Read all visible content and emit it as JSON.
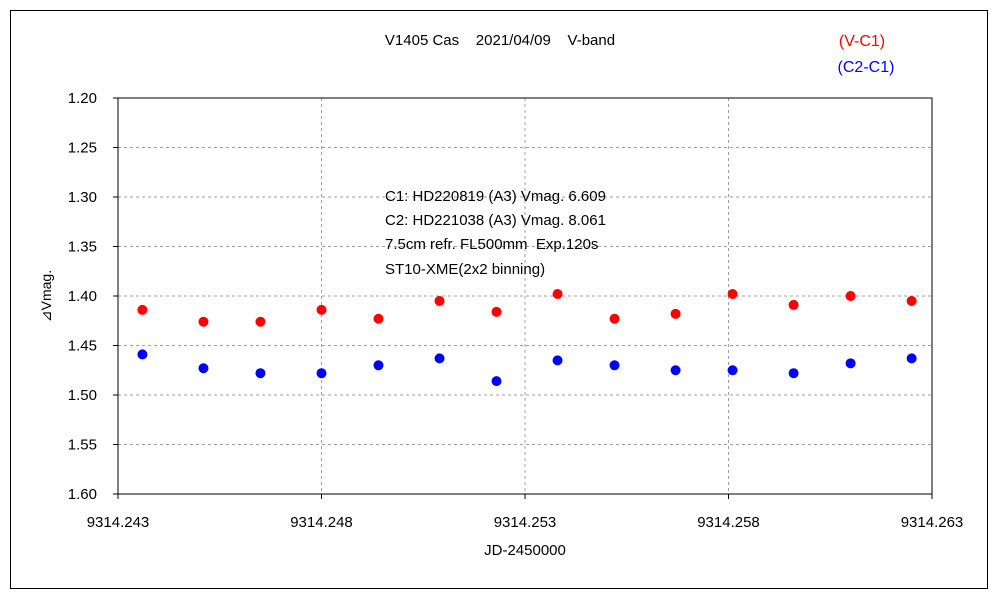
{
  "chart_data": {
    "type": "scatter",
    "title": "V1405 Cas    2021/04/09    V-band",
    "xlabel": "JD-2450000",
    "ylabel": "⊿Vmag.",
    "xlim": [
      9314.243,
      9314.263
    ],
    "ylim": [
      1.2,
      1.6
    ],
    "y_inverted": true,
    "grid": true,
    "x_ticks": [
      9314.243,
      9314.248,
      9314.253,
      9314.258,
      9314.263
    ],
    "x_tick_labels": [
      "9314.243",
      "9314.248",
      "9314.253",
      "9314.258",
      "9314.263"
    ],
    "y_ticks": [
      1.2,
      1.25,
      1.3,
      1.35,
      1.4,
      1.45,
      1.5,
      1.55,
      1.6
    ],
    "y_tick_labels": [
      "1.20",
      "1.25",
      "1.30",
      "1.35",
      "1.40",
      "1.45",
      "1.50",
      "1.55",
      "1.60"
    ],
    "legend_placement": "top-right",
    "x": [
      9314.2436,
      9314.2451,
      9314.2465,
      9314.248,
      9314.2494,
      9314.2509,
      9314.2523,
      9314.2538,
      9314.2552,
      9314.2567,
      9314.2581,
      9314.2596,
      9314.261,
      9314.2625
    ],
    "series": [
      {
        "name": "(V-C1)",
        "color": "#ff0000",
        "values": [
          1.414,
          1.426,
          1.426,
          1.414,
          1.423,
          1.405,
          1.416,
          1.398,
          1.423,
          1.418,
          1.398,
          1.409,
          1.4,
          1.405
        ]
      },
      {
        "name": "(C2-C1)",
        "color": "#0000ff",
        "values": [
          1.459,
          1.473,
          1.478,
          1.478,
          1.47,
          1.463,
          1.486,
          1.465,
          1.47,
          1.475,
          1.475,
          1.478,
          1.468,
          1.463
        ]
      }
    ],
    "annotations": [
      "C1: HD220819 (A3) Vmag. 6.609",
      "C2: HD221038 (A3) Vmag. 8.061",
      "7.5cm refr. FL500mm  Exp.120s",
      "ST10-XME(2x2 binning)"
    ]
  }
}
